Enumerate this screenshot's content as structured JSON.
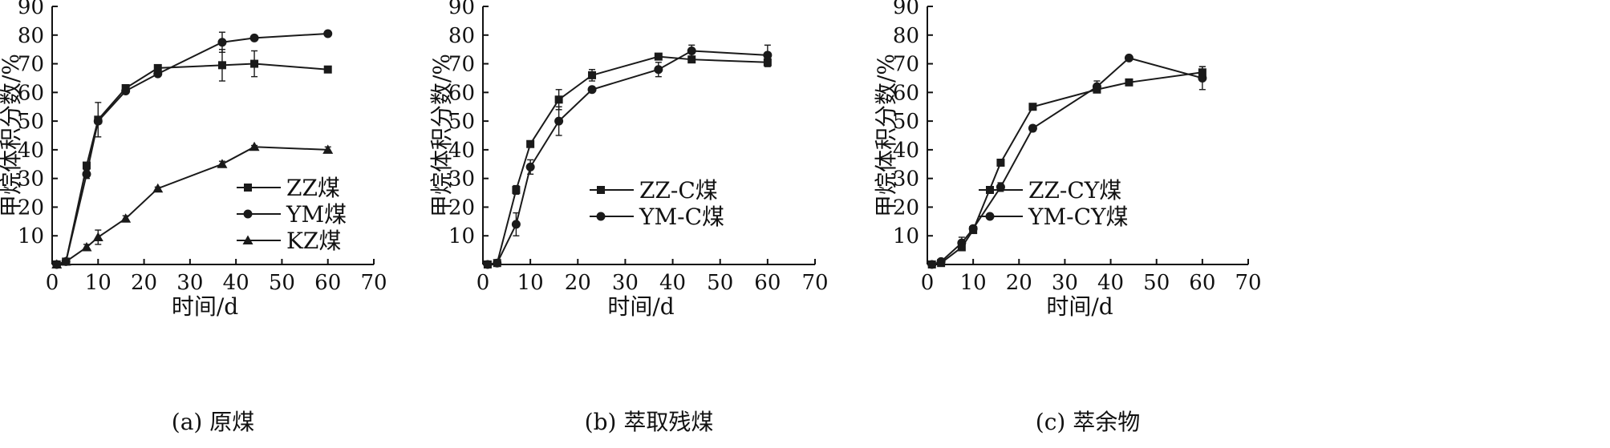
{
  "chart_data": [
    {
      "type": "line",
      "caption": "(a)  原煤",
      "xlabel": "时间/d",
      "ylabel": "甲烷体积分数/%",
      "xlim": [
        0,
        70
      ],
      "ylim": [
        0,
        90
      ],
      "xticks": [
        0,
        10,
        20,
        30,
        40,
        50,
        60,
        70
      ],
      "yticks": [
        10,
        20,
        30,
        40,
        50,
        60,
        70,
        80,
        90
      ],
      "legend_position": "lower-right",
      "grid": false,
      "series": [
        {
          "name": "ZZ煤",
          "marker": "square",
          "x": [
            1,
            3,
            7.5,
            10,
            16,
            23,
            37,
            44,
            60
          ],
          "y": [
            0,
            1,
            34.5,
            50.5,
            61.5,
            68.5,
            69.5,
            70,
            68
          ],
          "err": [
            0,
            0,
            1,
            6,
            1,
            1,
            5.5,
            4.5,
            0.5
          ]
        },
        {
          "name": "YM煤",
          "marker": "circle",
          "x": [
            1,
            3,
            7.5,
            10,
            16,
            23,
            37,
            44,
            60
          ],
          "y": [
            0,
            1,
            31.5,
            50,
            60.5,
            66.5,
            77.5,
            79,
            80.5
          ],
          "err": [
            0,
            0,
            1.5,
            1,
            0.5,
            0.5,
            3.5,
            0,
            0
          ]
        },
        {
          "name": "KZ煤",
          "marker": "triangle",
          "x": [
            1,
            3,
            7.5,
            10,
            16,
            23,
            37,
            44,
            60
          ],
          "y": [
            0,
            1,
            6,
            9.5,
            16,
            26.5,
            35,
            41,
            40
          ],
          "err": [
            0,
            0,
            1,
            2.5,
            1,
            0.5,
            1,
            0.5,
            1
          ]
        }
      ]
    },
    {
      "type": "line",
      "caption": "(b)  萃取残煤",
      "xlabel": "时间/d",
      "ylabel": "甲烷体积分数/%",
      "xlim": [
        0,
        70
      ],
      "ylim": [
        0,
        90
      ],
      "xticks": [
        0,
        10,
        20,
        30,
        40,
        50,
        60,
        70
      ],
      "yticks": [
        10,
        20,
        30,
        40,
        50,
        60,
        70,
        80,
        90
      ],
      "legend_position": "lower-right",
      "grid": false,
      "series": [
        {
          "name": "ZZ-C煤",
          "marker": "square",
          "x": [
            1,
            3,
            7,
            10,
            16,
            23,
            37,
            44,
            60
          ],
          "y": [
            0,
            0.5,
            26,
            42,
            57.5,
            66,
            72.5,
            71.5,
            70.5
          ],
          "err": [
            0,
            0,
            1.5,
            1,
            3.5,
            2,
            1,
            1,
            1.5
          ]
        },
        {
          "name": "YM-C煤",
          "marker": "circle",
          "x": [
            1,
            3,
            7,
            10,
            16,
            23,
            37,
            44,
            60
          ],
          "y": [
            0,
            0.5,
            14,
            34,
            50,
            61,
            68,
            74.5,
            73
          ],
          "err": [
            0,
            0,
            4,
            2.5,
            5,
            0.5,
            2.5,
            2,
            3.5
          ]
        }
      ]
    },
    {
      "type": "line",
      "caption": "(c)  萃余物",
      "xlabel": "时间/d",
      "ylabel": "甲烷体积分数/%",
      "xlim": [
        0,
        70
      ],
      "ylim": [
        0,
        90
      ],
      "xticks": [
        0,
        10,
        20,
        30,
        40,
        50,
        60,
        70
      ],
      "yticks": [
        10,
        20,
        30,
        40,
        50,
        60,
        70,
        80,
        90
      ],
      "legend_position": "lower-right",
      "grid": false,
      "series": [
        {
          "name": "ZZ-CY煤",
          "marker": "square",
          "x": [
            1,
            3,
            7.5,
            10,
            16,
            23,
            37,
            44,
            60
          ],
          "y": [
            0,
            0.5,
            6,
            12,
            35.5,
            55,
            61,
            63.5,
            67
          ],
          "err": [
            0,
            0,
            1,
            0.5,
            0.5,
            0.5,
            1,
            0,
            2
          ]
        },
        {
          "name": "YM-CY煤",
          "marker": "circle",
          "x": [
            1,
            3,
            7.5,
            10,
            16,
            23,
            37,
            44,
            60
          ],
          "y": [
            0,
            1,
            7.5,
            12.5,
            27,
            47.5,
            62,
            72,
            65
          ],
          "err": [
            0,
            0,
            2,
            1,
            1.5,
            1,
            2,
            0,
            4
          ]
        }
      ]
    }
  ]
}
